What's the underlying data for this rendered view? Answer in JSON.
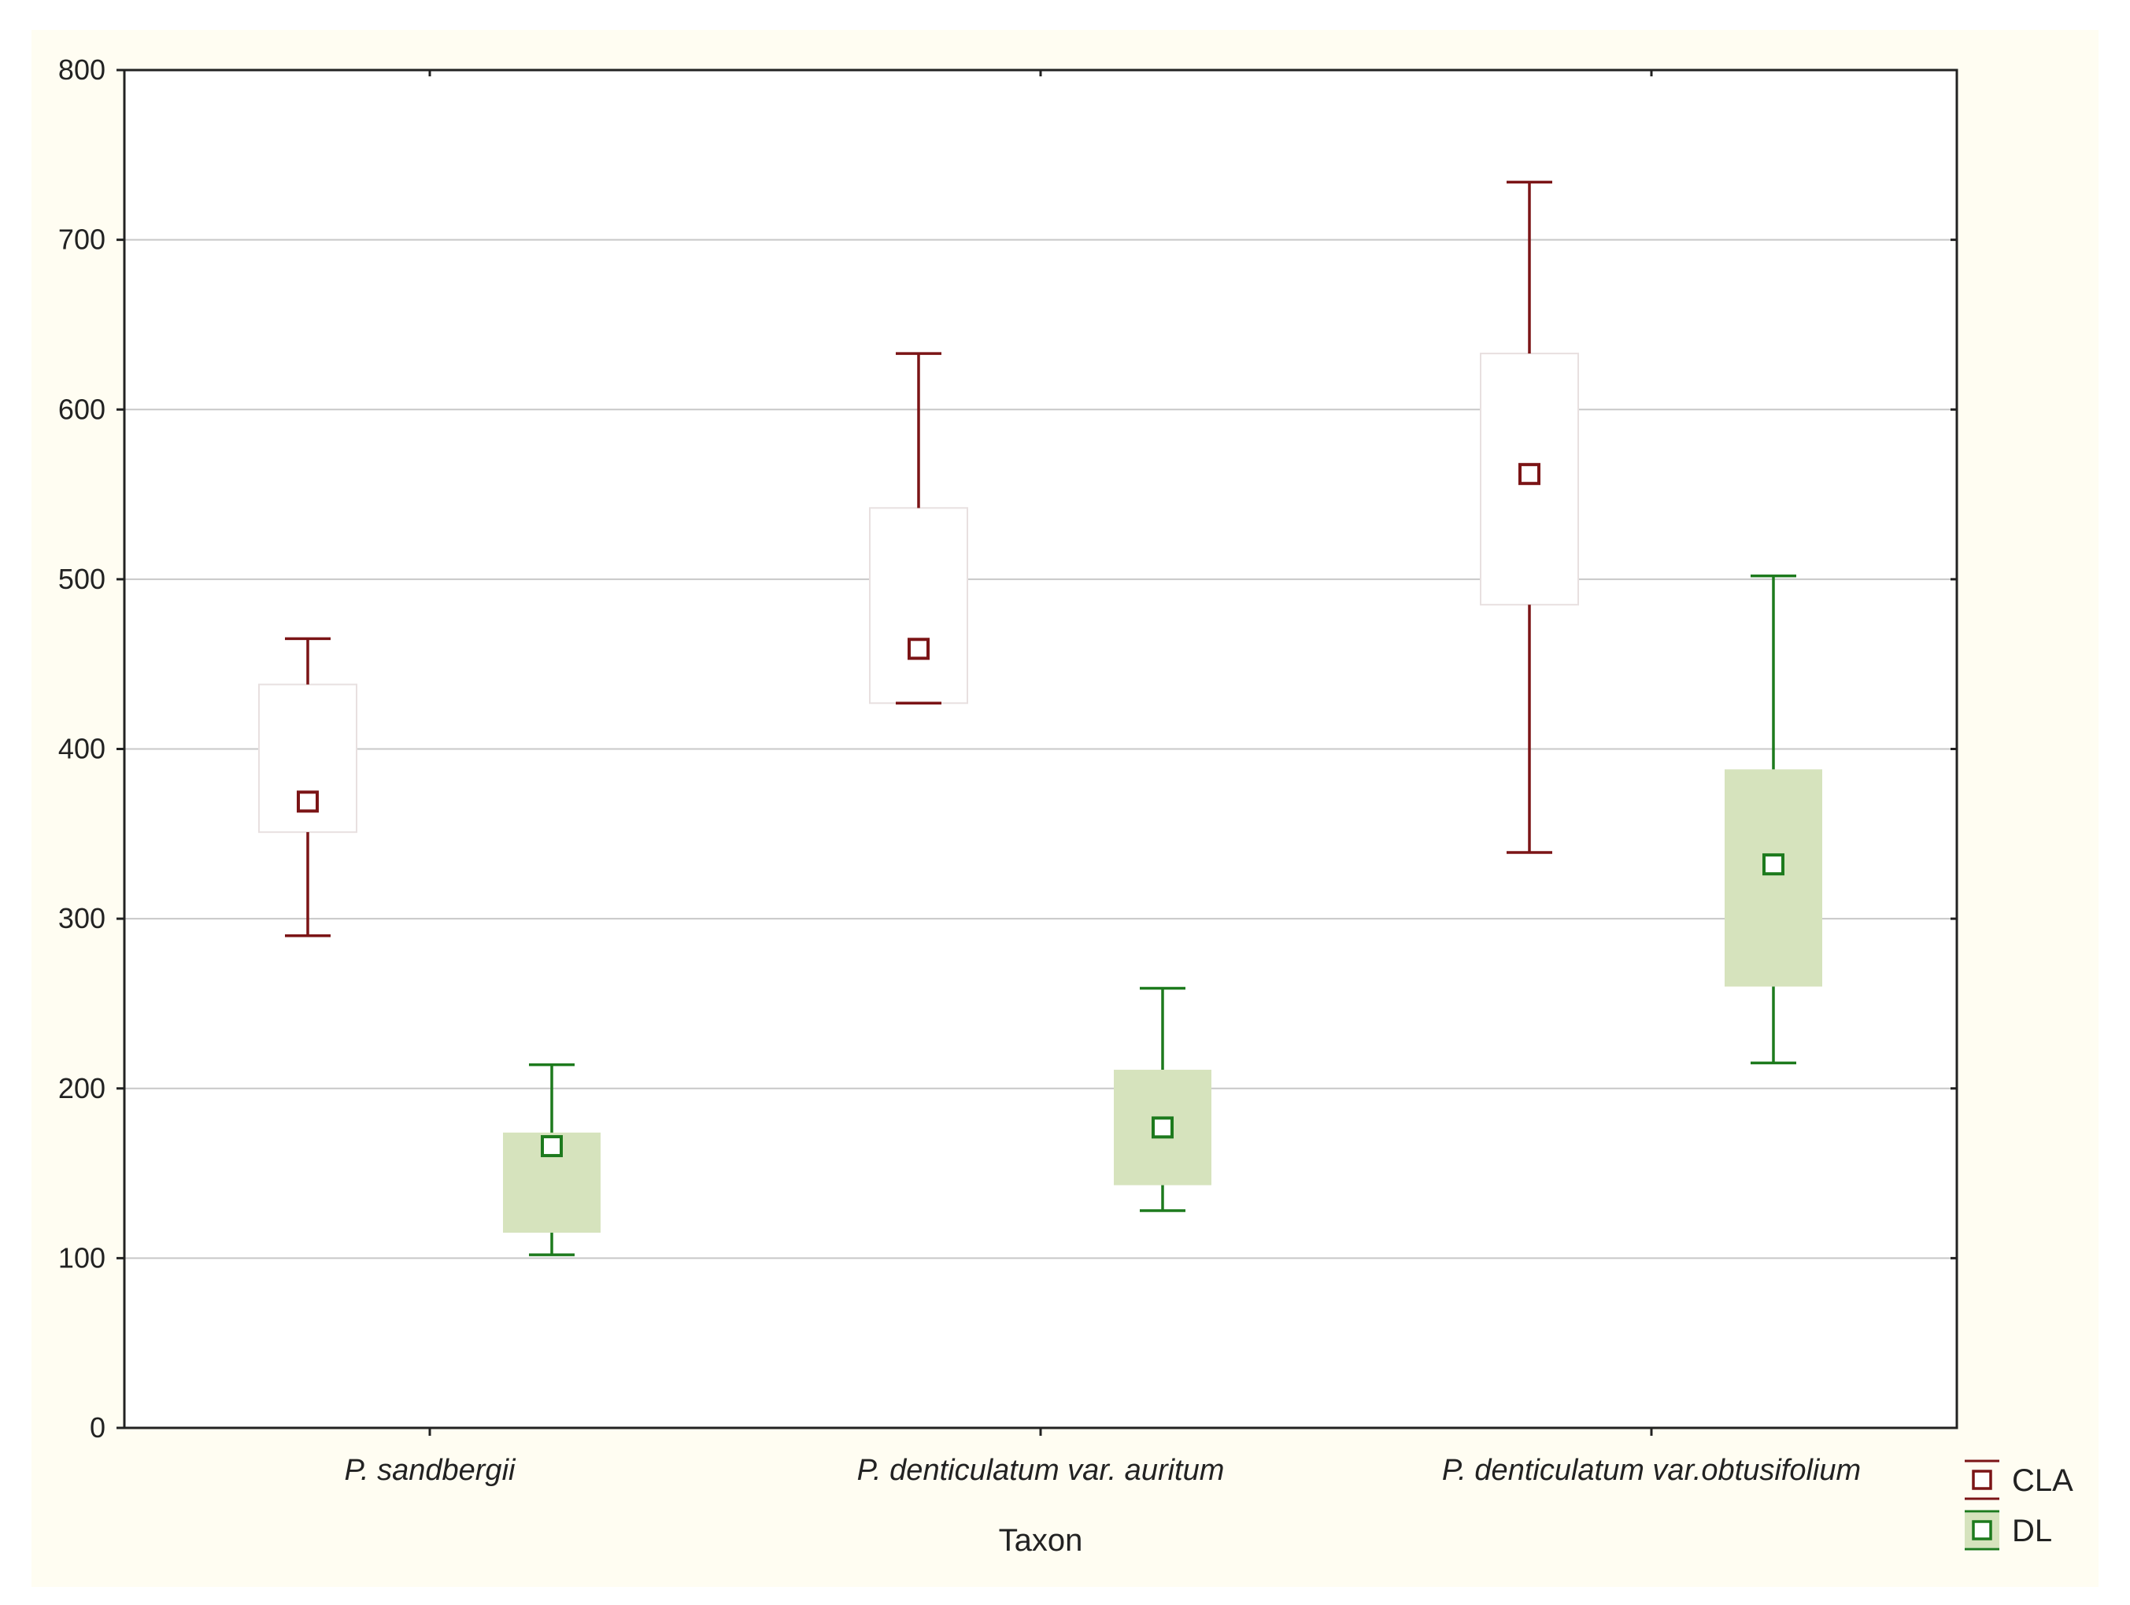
{
  "chart_data": {
    "type": "box",
    "title": "",
    "xlabel": "Taxon",
    "ylabel": "",
    "ylim": [
      0,
      800
    ],
    "yticks": [
      0,
      100,
      200,
      300,
      400,
      500,
      600,
      700,
      800
    ],
    "grid": true,
    "legend_position": "bottom-right",
    "categories": [
      "P. sandbergii",
      "P. denticulatum var. auritum",
      "P. denticulatum var.obtusifolium"
    ],
    "series": [
      {
        "name": "CLA",
        "color": "#7b1416",
        "box_fill": "#ffffff",
        "boxes": [
          {
            "whisker_low": 290,
            "box_low": 351,
            "center": 369,
            "box_high": 438,
            "whisker_high": 465
          },
          {
            "whisker_low": 427,
            "box_low": 427,
            "center": 459,
            "box_high": 542,
            "whisker_high": 633
          },
          {
            "whisker_low": 339,
            "box_low": 485,
            "center": 562,
            "box_high": 633,
            "whisker_high": 734
          }
        ]
      },
      {
        "name": "DL",
        "color": "#1d7a1d",
        "box_fill": "#d6e3bd",
        "boxes": [
          {
            "whisker_low": 102,
            "box_low": 115,
            "center": 166,
            "box_high": 174,
            "whisker_high": 214
          },
          {
            "whisker_low": 128,
            "box_low": 143,
            "center": 177,
            "box_high": 211,
            "whisker_high": 259
          },
          {
            "whisker_low": 215,
            "box_low": 260,
            "center": 332,
            "box_high": 388,
            "whisker_high": 502
          }
        ]
      }
    ]
  },
  "colors": {
    "background": "#fffdf2",
    "plot_background": "#ffffff",
    "gridline": "#c8c8c8",
    "axis": "#222222"
  }
}
